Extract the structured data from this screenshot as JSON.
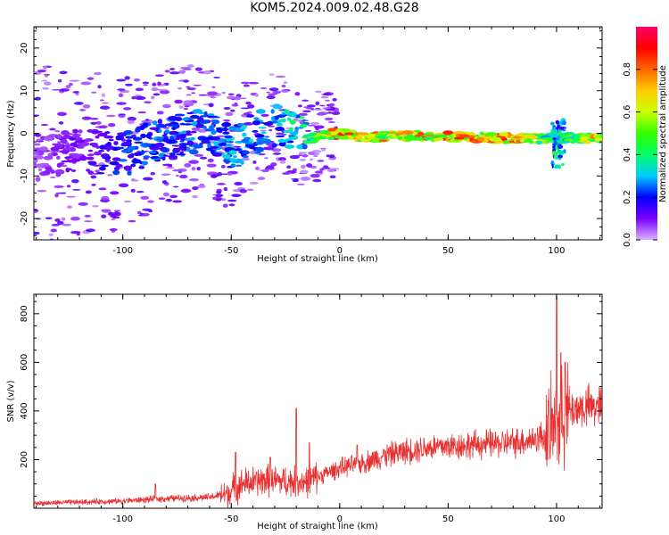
{
  "title": "KOM5.2024.009.02.48.G28",
  "chart_data": [
    {
      "type": "heatmap",
      "xlabel": "Height of straight line (km)",
      "ylabel": "Frequency (Hz)",
      "xlim": [
        -141,
        121
      ],
      "ylim": [
        -25,
        25
      ],
      "x_ticks": [
        -100,
        -50,
        0,
        50,
        100
      ],
      "y_ticks": [
        -20,
        -10,
        0,
        10,
        20
      ],
      "colorbar": {
        "label": "Normalized spectral amplitude",
        "range": [
          0,
          1
        ],
        "ticks": [
          0.0,
          0.2,
          0.4,
          0.6,
          0.8
        ],
        "tick_labels": [
          "0.0",
          "0.2",
          "0.4",
          "0.6",
          "0.8"
        ],
        "colormap": [
          "#d9b3ff",
          "#7a00ff",
          "#0000ff",
          "#00ccff",
          "#00ff66",
          "#33ff00",
          "#ccff00",
          "#ffcc00",
          "#ff6600",
          "#ff0000",
          "#ff0066"
        ]
      },
      "ridge": [
        {
          "x": -140,
          "y": -6,
          "a": 0.06
        },
        {
          "x": -120,
          "y": -4,
          "a": 0.12
        },
        {
          "x": -100,
          "y": -5,
          "a": 0.22
        },
        {
          "x": -80,
          "y": -1,
          "a": 0.25
        },
        {
          "x": -60,
          "y": 1,
          "a": 0.25
        },
        {
          "x": -50,
          "y": -4,
          "a": 0.32
        },
        {
          "x": -40,
          "y": 0,
          "a": 0.3
        },
        {
          "x": -30,
          "y": 2,
          "a": 0.28
        },
        {
          "x": -15,
          "y": -1.5,
          "a": 0.45
        },
        {
          "x": -10,
          "y": -0.5,
          "a": 0.6
        },
        {
          "x": 0,
          "y": 0,
          "a": 0.85
        },
        {
          "x": 10,
          "y": -1,
          "a": 0.7
        },
        {
          "x": 20,
          "y": -0.8,
          "a": 0.72
        },
        {
          "x": 40,
          "y": -0.6,
          "a": 0.75
        },
        {
          "x": 60,
          "y": -0.9,
          "a": 0.8
        },
        {
          "x": 80,
          "y": -1.2,
          "a": 0.78
        },
        {
          "x": 95,
          "y": -1.2,
          "a": 0.5
        },
        {
          "x": 102,
          "y": -1,
          "a": 0.4
        },
        {
          "x": 120,
          "y": -1.3,
          "a": 0.75
        }
      ]
    },
    {
      "type": "line",
      "xlabel": "Height of straight line (km)",
      "ylabel": "SNR (v/v)",
      "xlim": [
        -141,
        121
      ],
      "ylim": [
        0,
        880
      ],
      "x_ticks": [
        -100,
        -50,
        0,
        50,
        100
      ],
      "y_ticks": [
        200,
        400,
        600,
        800
      ],
      "color": "#e83030",
      "trend": [
        {
          "x": -141,
          "y": 20
        },
        {
          "x": -100,
          "y": 30
        },
        {
          "x": -80,
          "y": 40
        },
        {
          "x": -60,
          "y": 45
        },
        {
          "x": -52,
          "y": 60
        },
        {
          "x": -45,
          "y": 100
        },
        {
          "x": -35,
          "y": 115
        },
        {
          "x": -25,
          "y": 110
        },
        {
          "x": -15,
          "y": 110
        },
        {
          "x": -10,
          "y": 130
        },
        {
          "x": 0,
          "y": 165
        },
        {
          "x": 10,
          "y": 185
        },
        {
          "x": 20,
          "y": 215
        },
        {
          "x": 30,
          "y": 235
        },
        {
          "x": 40,
          "y": 250
        },
        {
          "x": 60,
          "y": 260
        },
        {
          "x": 80,
          "y": 270
        },
        {
          "x": 90,
          "y": 285
        },
        {
          "x": 95,
          "y": 300
        },
        {
          "x": 108,
          "y": 410
        },
        {
          "x": 121,
          "y": 420
        }
      ],
      "spikes": [
        {
          "x": -85,
          "y": 100
        },
        {
          "x": -48,
          "y": 230
        },
        {
          "x": -32,
          "y": 210
        },
        {
          "x": -20,
          "y": 410
        },
        {
          "x": -14,
          "y": 270
        },
        {
          "x": 8,
          "y": 260
        },
        {
          "x": 98,
          "y": 410
        },
        {
          "x": 100,
          "y": 870
        },
        {
          "x": 102,
          "y": 640
        },
        {
          "x": 104,
          "y": 600
        }
      ]
    }
  ]
}
